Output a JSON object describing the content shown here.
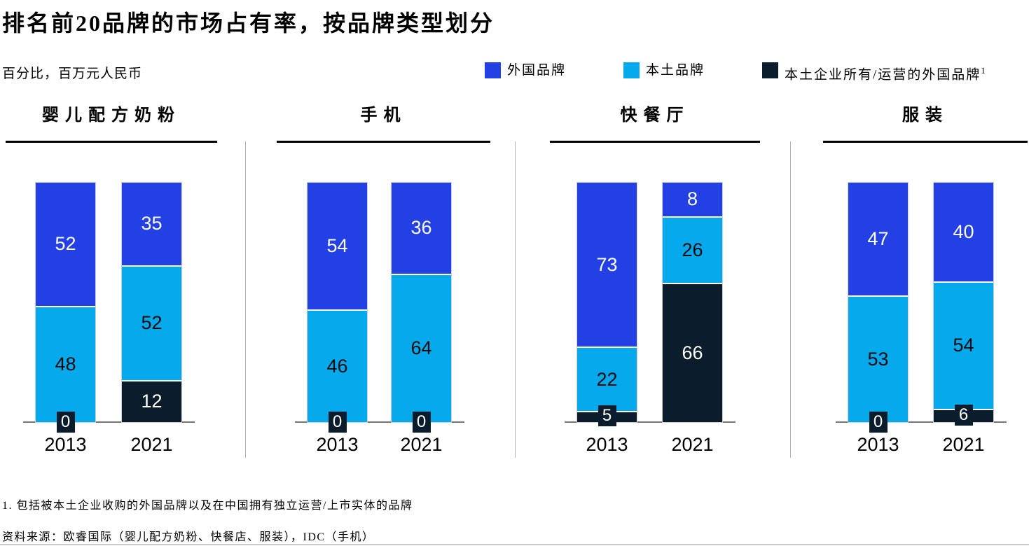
{
  "header": {
    "title": "排名前20品牌的市场占有率，按品牌类型划分",
    "subtitle": "百分比，百万元人民币"
  },
  "legend": [
    {
      "label": "外国品牌",
      "color": "#2240E4"
    },
    {
      "label": "本土品牌",
      "color": "#05A9EC"
    },
    {
      "label": "本土企业所有/运营的外国品牌",
      "superscript": "1",
      "color": "#0B1C2C"
    }
  ],
  "colors": {
    "foreign": "#2240E4",
    "local": "#05A9EC",
    "local_owned_foreign": "#0B1C2C",
    "label_on_dark": "#ffffff",
    "label_on_light": "#0a0a0a"
  },
  "chart_data": {
    "type": "bar",
    "stacked": true,
    "unit": "percent",
    "ylim": [
      0,
      100
    ],
    "legend_entries": [
      "外国品牌",
      "本土品牌",
      "本土企业所有/运营的外国品牌"
    ],
    "panels": [
      {
        "title": "婴儿配方奶粉",
        "categories": [
          "2013",
          "2021"
        ],
        "series": [
          {
            "name": "外国品牌",
            "values": [
              52,
              35
            ]
          },
          {
            "name": "本土品牌",
            "values": [
              48,
              52
            ]
          },
          {
            "name": "本土企业所有/运营的外国品牌",
            "values": [
              0,
              12
            ]
          }
        ]
      },
      {
        "title": "手机",
        "categories": [
          "2013",
          "2021"
        ],
        "series": [
          {
            "name": "外国品牌",
            "values": [
              54,
              36
            ]
          },
          {
            "name": "本土品牌",
            "values": [
              46,
              64
            ]
          },
          {
            "name": "本土企业所有/运营的外国品牌",
            "values": [
              0,
              0
            ]
          }
        ]
      },
      {
        "title": "快餐厅",
        "categories": [
          "2013",
          "2021"
        ],
        "series": [
          {
            "name": "外国品牌",
            "values": [
              73,
              8
            ]
          },
          {
            "name": "本土品牌",
            "values": [
              22,
              26
            ]
          },
          {
            "name": "本土企业所有/运营的外国品牌",
            "values": [
              5,
              66
            ]
          }
        ]
      },
      {
        "title": "服装",
        "categories": [
          "2013",
          "2021"
        ],
        "series": [
          {
            "name": "外国品牌",
            "values": [
              47,
              40
            ]
          },
          {
            "name": "本土品牌",
            "values": [
              53,
              54
            ]
          },
          {
            "name": "本土企业所有/运营的外国品牌",
            "values": [
              0,
              6
            ]
          }
        ]
      }
    ]
  },
  "footer": {
    "footnote": "1. 包括被本土企业收购的外国品牌以及在中国拥有独立运营/上市实体的品牌",
    "source": "资料来源：欧睿国际（婴儿配方奶粉、快餐店、服装），IDC（手机）"
  }
}
